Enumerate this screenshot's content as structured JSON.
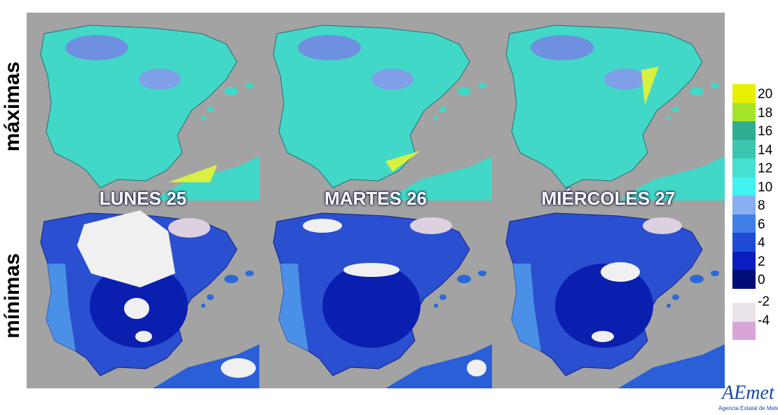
{
  "rows": [
    {
      "label": "máximas"
    },
    {
      "label": "mínimas"
    }
  ],
  "days": [
    "LUNES 25",
    "MARTES 26",
    "MIÉRCOLES 27"
  ],
  "legend": {
    "ticks": [
      20,
      18,
      16,
      14,
      12,
      10,
      8,
      6,
      4,
      2,
      0
    ],
    "colors": [
      "#e6f000",
      "#a4e428",
      "#2fae90",
      "#3cc6b0",
      "#44e0d2",
      "#40f2f2",
      "#86aef0",
      "#3f7fe6",
      "#1e4cd6",
      "#0a1fc0",
      "#000c78"
    ],
    "negative": [
      -2,
      -4
    ],
    "negative_colors": [
      "#ebe3ea",
      "#d8a6d6"
    ]
  },
  "logo": {
    "name": "AEmet",
    "caption": "Agencia Estatal de Meteorologí"
  }
}
